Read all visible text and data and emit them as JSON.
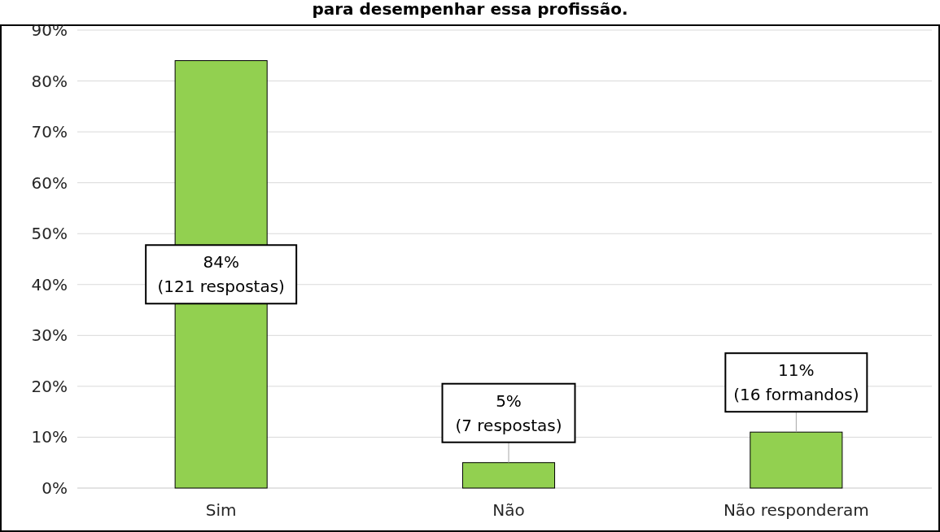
{
  "chart_data": {
    "type": "bar",
    "title": "para desempenhar essa profissão.",
    "categories": [
      "Sim",
      "Não",
      "Não responderam"
    ],
    "values": [
      84,
      5,
      11
    ],
    "color": "#92d050",
    "value_labels": [
      "84%\n(121 respostas)",
      "5%\n(7 respostas)",
      "11%\n(16 formandos)"
    ],
    "ylim": [
      0,
      90
    ],
    "yticks": [
      {
        "value": 0,
        "label": "0%"
      },
      {
        "value": 10,
        "label": "10%"
      },
      {
        "value": 20,
        "label": "20%"
      },
      {
        "value": 30,
        "label": "30%"
      },
      {
        "value": 40,
        "label": "40%"
      },
      {
        "value": 50,
        "label": "50%"
      },
      {
        "value": 60,
        "label": "60%"
      },
      {
        "value": 70,
        "label": "70%"
      },
      {
        "value": 80,
        "label": "80%"
      },
      {
        "value": 90,
        "label": "90%"
      }
    ],
    "grid": "y"
  }
}
